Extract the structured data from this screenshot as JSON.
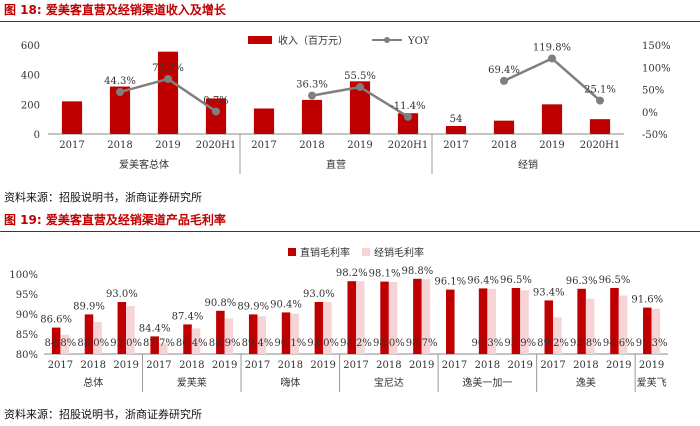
{
  "figure1": {
    "number": "图 18:",
    "title": "爱美客直营及经销渠道收入及增长",
    "source": "资料来源：招股说明书，浙商证券研究所",
    "chart_data": {
      "type": "bar+line",
      "legend": [
        "收入（百万元）",
        "YOY"
      ],
      "groups": [
        "爱美客总体",
        "直营",
        "经销"
      ],
      "categories": [
        "2017",
        "2018",
        "2019",
        "2020H1"
      ],
      "revenue": [
        [
          220,
          320,
          555,
          240
        ],
        [
          172,
          230,
          355,
          140
        ],
        [
          54,
          90,
          200,
          100
        ]
      ],
      "revenue_labels": [
        [
          "",
          "",
          "",
          ""
        ],
        [
          "",
          "",
          "",
          ""
        ],
        [
          "54",
          "",
          "",
          ""
        ]
      ],
      "yoy": [
        [
          null,
          44.3,
          73.7,
          0.7
        ],
        [
          null,
          36.3,
          55.5,
          -11.4
        ],
        [
          null,
          69.4,
          119.8,
          25.1
        ]
      ],
      "yoy_labels": [
        [
          "",
          "44.3%",
          "73.7%",
          "0.7%"
        ],
        [
          "",
          "36.3%",
          "55.5%",
          "-11.4%"
        ],
        [
          "",
          "69.4%",
          "119.8%",
          "25.1%"
        ]
      ],
      "y_left": {
        "min": 0,
        "max": 600,
        "ticks": [
          "0",
          "200",
          "400",
          "600"
        ]
      },
      "y_right": {
        "min": -50,
        "max": 150,
        "ticks": [
          "-50%",
          "0%",
          "50%",
          "100%",
          "150%"
        ]
      },
      "colors": {
        "bar": "#c00000",
        "line": "#7f7f7f"
      }
    }
  },
  "figure2": {
    "number": "图 19:",
    "title": "爱美客直营及经销渠道产品毛利率",
    "source": "资料来源：招股说明书，浙商证券研究所",
    "chart_data": {
      "type": "bar",
      "legend": [
        "直销毛利率",
        "经销毛利率"
      ],
      "groups": [
        {
          "name": "总体",
          "years": [
            "2017",
            "2018",
            "2019"
          ]
        },
        {
          "name": "爱芙莱",
          "years": [
            "2017",
            "2018",
            "2019"
          ]
        },
        {
          "name": "嗨体",
          "years": [
            "2017",
            "2018",
            "2019"
          ]
        },
        {
          "name": "宝尼达",
          "years": [
            "2017",
            "2018",
            "2019"
          ]
        },
        {
          "name": "逸美一加一",
          "years": [
            "2017",
            "2018",
            "2019"
          ]
        },
        {
          "name": "逸美",
          "years": [
            "2017",
            "2018",
            "2019"
          ]
        },
        {
          "name": "爱芙飞",
          "years": [
            "2019"
          ]
        }
      ],
      "direct": [
        [
          86.6,
          89.9,
          93.0
        ],
        [
          84.4,
          87.4,
          90.8
        ],
        [
          89.9,
          90.4,
          93.0
        ],
        [
          98.2,
          98.1,
          98.8
        ],
        [
          96.1,
          96.4,
          96.5
        ],
        [
          93.4,
          96.3,
          96.5
        ],
        [
          91.6
        ]
      ],
      "distribution": [
        [
          84.8,
          88.0,
          92.0
        ],
        [
          82.7,
          86.4,
          88.9
        ],
        [
          89.4,
          90.1,
          93.0
        ],
        [
          98.2,
          98.0,
          98.7
        ],
        [
          null,
          96.3,
          95.9
        ],
        [
          89.2,
          93.8,
          94.6
        ],
        [
          91.3
        ]
      ],
      "direct_labels": [
        [
          "86.6%",
          "89.9%",
          "93.0%"
        ],
        [
          "84.4%",
          "87.4%",
          "90.8%"
        ],
        [
          "89.9%",
          "90.4%",
          "93.0%"
        ],
        [
          "98.2%",
          "98.1%",
          "98.8%"
        ],
        [
          "96.1%",
          "96.4%",
          "96.5%"
        ],
        [
          "93.4%",
          "96.3%",
          "96.5%"
        ],
        [
          "91.6%"
        ]
      ],
      "distribution_labels": [
        [
          "84.8%",
          "88.0%",
          "92.0%"
        ],
        [
          "82.7%",
          "86.4%",
          "88.9%"
        ],
        [
          "89.4%",
          "90.1%",
          "93.0%"
        ],
        [
          "98.2%",
          "98.0%",
          "98.7%"
        ],
        [
          "",
          "96.3%",
          "95.9%"
        ],
        [
          "89.2%",
          "93.8%",
          "94.6%"
        ],
        [
          "91.3%"
        ]
      ],
      "y": {
        "min": 80,
        "max": 100,
        "ticks": [
          "80%",
          "85%",
          "90%",
          "95%",
          "100%"
        ]
      },
      "colors": {
        "direct": "#c00000",
        "distribution": "#f6d3d5"
      }
    }
  }
}
